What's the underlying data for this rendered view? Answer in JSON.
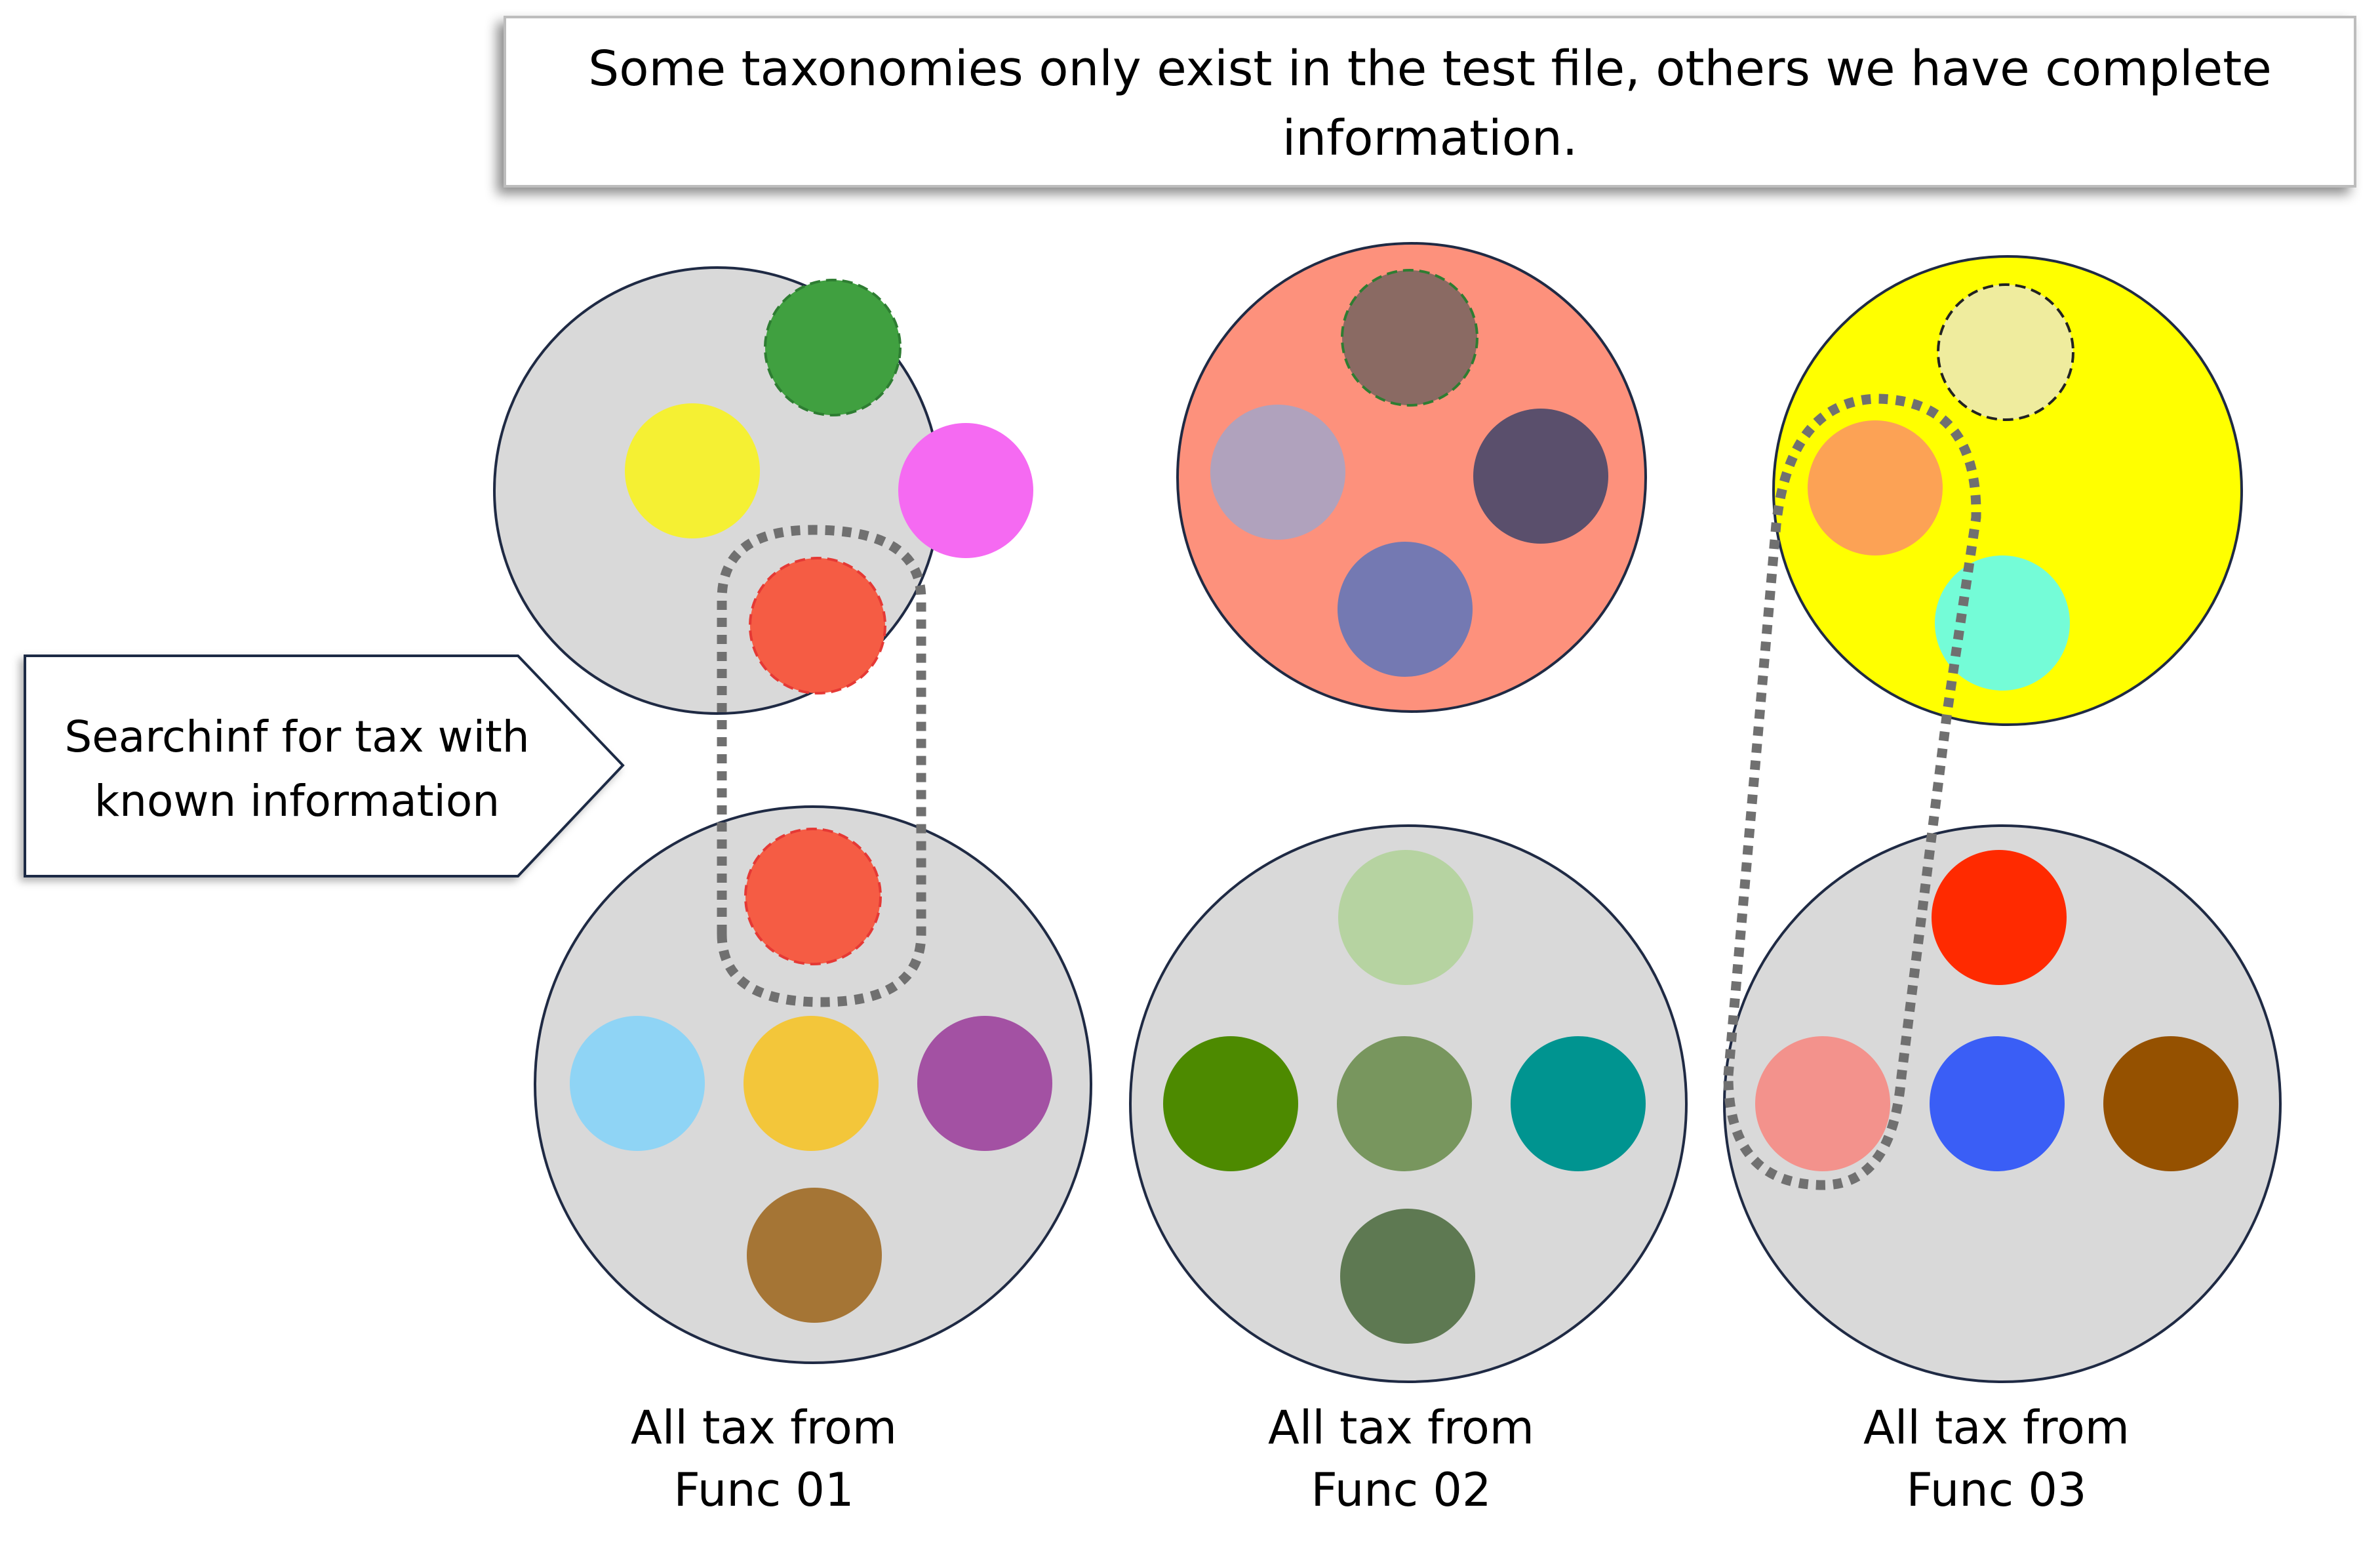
{
  "header": {
    "lines": [
      "Some taxonomies only exist in the test file, others we have complete",
      "information."
    ]
  },
  "callout": {
    "lines": [
      "Searchinf for tax with",
      "known information"
    ]
  },
  "test_sets": [
    {
      "fill": "#d9d9d9",
      "items": [
        {
          "color": "#40a040",
          "dashed": true,
          "stroke": "#2e7d32"
        },
        {
          "color": "#f5f033",
          "dashed": false
        },
        {
          "color": "#f56af2",
          "dashed": false
        },
        {
          "color": "#f55c44",
          "dashed": true,
          "stroke": "#e53935"
        }
      ]
    },
    {
      "fill": "#fd917c",
      "items": [
        {
          "color": "#8a6a63",
          "dashed": true,
          "stroke": "#2e7d32"
        },
        {
          "color": "#b0a2bd",
          "dashed": false
        },
        {
          "color": "#5a4f6c",
          "dashed": false
        },
        {
          "color": "#7479b2",
          "dashed": false
        }
      ]
    },
    {
      "fill": "#ffff00",
      "items": [
        {
          "color": "#efec9e",
          "dashed": true,
          "stroke": "#222222"
        },
        {
          "color": "#fca255",
          "dashed": false
        },
        {
          "color": "#74fcd7",
          "dashed": false
        }
      ]
    }
  ],
  "func_sets": [
    {
      "label_lines": [
        "All tax from",
        "Func 01"
      ],
      "fill": "#d9d9d9",
      "items": [
        {
          "color": "#f55c44",
          "dashed": true,
          "stroke": "#e53935"
        },
        {
          "color": "#8fd4f5",
          "dashed": false
        },
        {
          "color": "#f3c63a",
          "dashed": false
        },
        {
          "color": "#a351a3",
          "dashed": false
        },
        {
          "color": "#a57535",
          "dashed": false
        }
      ]
    },
    {
      "label_lines": [
        "All tax from",
        "Func 02"
      ],
      "fill": "#d9d9d9",
      "items": [
        {
          "color": "#b6d3a1",
          "dashed": false
        },
        {
          "color": "#4d8a00",
          "dashed": false
        },
        {
          "color": "#78965e",
          "dashed": false
        },
        {
          "color": "#009490",
          "dashed": false
        },
        {
          "color": "#5e7952",
          "dashed": false
        }
      ]
    },
    {
      "label_lines": [
        "All tax from",
        "Func 03"
      ],
      "fill": "#d9d9d9",
      "items": [
        {
          "color": "#ff2a00",
          "dashed": false
        },
        {
          "color": "#f3928c",
          "dashed": false
        },
        {
          "color": "#3a5ef6",
          "dashed": false
        },
        {
          "color": "#955100",
          "dashed": false
        }
      ]
    }
  ]
}
